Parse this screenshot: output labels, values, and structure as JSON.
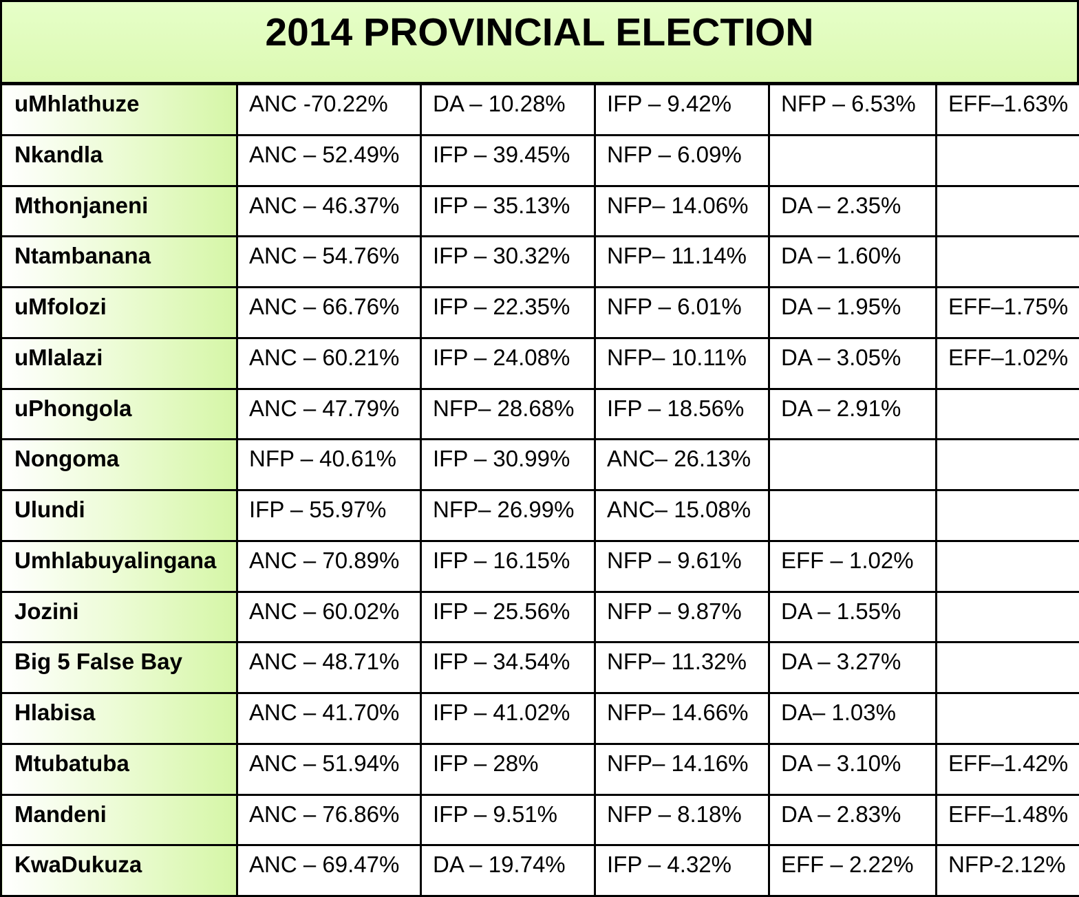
{
  "title": "2014 PROVINCIAL ELECTION",
  "rows": [
    {
      "municipality": "uMhlathuze",
      "results": [
        "ANC -70.22%",
        "DA – 10.28%",
        "IFP – 9.42%",
        "NFP – 6.53%",
        "EFF–1.63%"
      ]
    },
    {
      "municipality": "Nkandla",
      "results": [
        "ANC – 52.49%",
        "IFP – 39.45%",
        "NFP – 6.09%",
        "",
        ""
      ]
    },
    {
      "municipality": "Mthonjaneni",
      "results": [
        "ANC – 46.37%",
        "IFP – 35.13%",
        "NFP– 14.06%",
        "DA – 2.35%",
        ""
      ]
    },
    {
      "municipality": "Ntambanana",
      "results": [
        "ANC – 54.76%",
        "IFP – 30.32%",
        "NFP– 11.14%",
        "DA – 1.60%",
        ""
      ]
    },
    {
      "municipality": "uMfolozi",
      "results": [
        "ANC – 66.76%",
        "IFP – 22.35%",
        "NFP – 6.01%",
        "DA – 1.95%",
        "EFF–1.75%"
      ]
    },
    {
      "municipality": "uMlalazi",
      "results": [
        "ANC – 60.21%",
        "IFP – 24.08%",
        "NFP– 10.11%",
        "DA – 3.05%",
        "EFF–1.02%"
      ]
    },
    {
      "municipality": "uPhongola",
      "results": [
        "ANC – 47.79%",
        "NFP– 28.68%",
        "IFP – 18.56%",
        "DA – 2.91%",
        ""
      ]
    },
    {
      "municipality": "Nongoma",
      "results": [
        "NFP – 40.61%",
        "IFP – 30.99%",
        "ANC– 26.13%",
        "",
        ""
      ]
    },
    {
      "municipality": "Ulundi",
      "results": [
        "IFP – 55.97%",
        "NFP– 26.99%",
        "ANC– 15.08%",
        "",
        ""
      ]
    },
    {
      "municipality": "Umhlabuyalingana",
      "results": [
        "ANC – 70.89%",
        "IFP – 16.15%",
        "NFP – 9.61%",
        "EFF – 1.02%",
        ""
      ]
    },
    {
      "municipality": "Jozini",
      "results": [
        "ANC – 60.02%",
        "IFP – 25.56%",
        "NFP – 9.87%",
        "DA – 1.55%",
        ""
      ]
    },
    {
      "municipality": "Big 5 False Bay",
      "results": [
        "ANC – 48.71%",
        "IFP – 34.54%",
        "NFP– 11.32%",
        "DA – 3.27%",
        ""
      ]
    },
    {
      "municipality": "Hlabisa",
      "results": [
        "ANC – 41.70%",
        "IFP – 41.02%",
        "NFP– 14.66%",
        "DA– 1.03%",
        ""
      ]
    },
    {
      "municipality": "Mtubatuba",
      "results": [
        "ANC – 51.94%",
        "IFP – 28%",
        "NFP– 14.16%",
        "DA – 3.10%",
        "EFF–1.42%"
      ]
    },
    {
      "municipality": "Mandeni",
      "results": [
        "ANC – 76.86%",
        "IFP – 9.51%",
        "NFP – 8.18%",
        "DA – 2.83%",
        "EFF–1.48%"
      ]
    },
    {
      "municipality": "KwaDukuza",
      "results": [
        "ANC – 69.47%",
        "DA – 19.74%",
        "IFP – 4.32%",
        "EFF – 2.22%",
        "NFP-2.12%"
      ]
    }
  ]
}
